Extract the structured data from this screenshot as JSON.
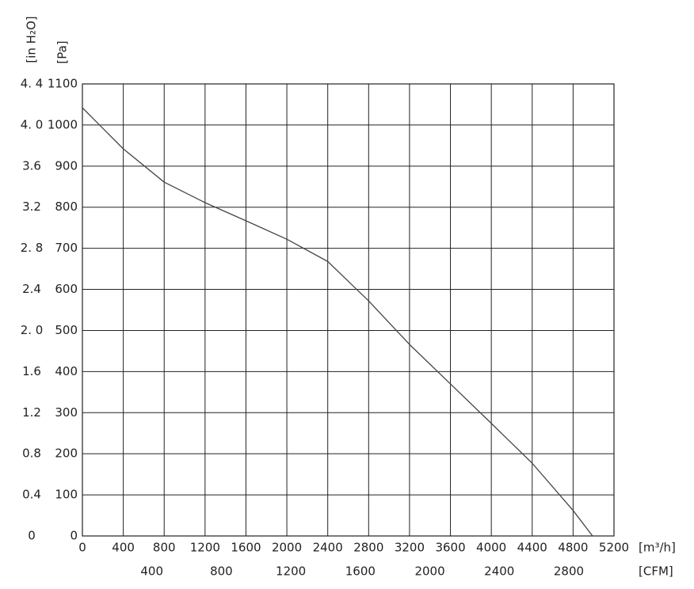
{
  "chart_data": {
    "type": "line",
    "x_label": "[m³/h]",
    "x2_label": "[CFM]",
    "y_label": "[Pa]",
    "y2_label": "[in H₂O]",
    "x": [
      0,
      400,
      800,
      1200,
      1600,
      2000,
      2400,
      2600,
      2800,
      3200,
      3600,
      4000,
      4400,
      4800,
      4990
    ],
    "series": [
      {
        "color": "#444444",
        "values": [
          1042,
          942,
          861,
          811,
          767,
          722,
          668,
          620,
          572,
          466,
          370,
          274,
          177,
          62,
          0
        ]
      }
    ],
    "xlim": [
      0,
      5200
    ],
    "xticks": [
      0,
      400,
      800,
      1200,
      1600,
      2000,
      2400,
      2800,
      3200,
      3600,
      4000,
      4400,
      4800,
      5200
    ],
    "x2lim": [
      0,
      3060
    ],
    "x2ticks": [
      400,
      800,
      1200,
      1600,
      2000,
      2400,
      2800
    ],
    "ylim": [
      0,
      1100
    ],
    "yticks": [
      0,
      100,
      200,
      300,
      400,
      500,
      600,
      700,
      800,
      900,
      1000,
      1100
    ],
    "y2lim": [
      0,
      4.4
    ],
    "y2ticks": [
      0,
      0.4,
      0.8,
      1.2,
      1.6,
      {
        "value": 2.0,
        "label": "2. 0"
      },
      2.4,
      {
        "value": 2.8,
        "label": "2. 8"
      },
      3.2,
      3.6,
      {
        "value": 4.0,
        "label": "4. 0"
      },
      {
        "value": 4.4,
        "label": "4. 4"
      }
    ],
    "grid": true
  }
}
